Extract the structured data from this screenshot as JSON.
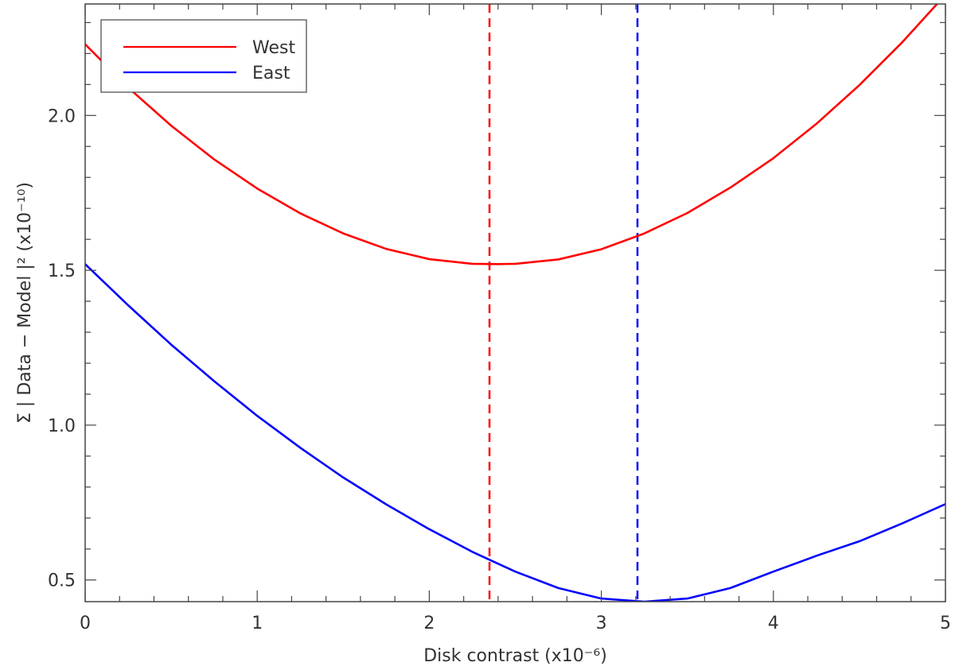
{
  "chart_data": {
    "type": "line",
    "xlabel": "Disk contrast (x10⁻⁶)",
    "ylabel": "Σ | Data − Model |² (x10⁻¹⁰)",
    "xlim": [
      0,
      5
    ],
    "ylim": [
      0.43,
      2.36
    ],
    "x_ticks": [
      {
        "value": 0,
        "label": "0"
      },
      {
        "value": 1,
        "label": "1"
      },
      {
        "value": 2,
        "label": "2"
      },
      {
        "value": 3,
        "label": "3"
      },
      {
        "value": 4,
        "label": "4"
      },
      {
        "value": 5,
        "label": "5"
      }
    ],
    "y_ticks": [
      {
        "value": 0.5,
        "label": "0.5"
      },
      {
        "value": 1.0,
        "label": "1.0"
      },
      {
        "value": 1.5,
        "label": "1.5"
      },
      {
        "value": 2.0,
        "label": "2.0"
      }
    ],
    "x_minor_step": 0.2,
    "y_minor_step": 0.1,
    "legend": {
      "position": "top-left"
    },
    "grid": false,
    "series": [
      {
        "name": "West",
        "color": "#ff0000",
        "x": [
          0.0,
          0.25,
          0.5,
          0.75,
          1.0,
          1.25,
          1.5,
          1.75,
          2.0,
          2.25,
          2.4,
          2.5,
          2.75,
          3.0,
          3.25,
          3.5,
          3.75,
          4.0,
          4.25,
          4.5,
          4.75,
          5.0
        ],
        "y": [
          2.23,
          2.09,
          1.967,
          1.858,
          1.764,
          1.684,
          1.619,
          1.569,
          1.536,
          1.521,
          1.52,
          1.521,
          1.535,
          1.568,
          1.619,
          1.685,
          1.767,
          1.862,
          1.973,
          2.098,
          2.237,
          2.39
        ]
      },
      {
        "name": "East",
        "color": "#0000ff",
        "x": [
          0.0,
          0.25,
          0.5,
          0.75,
          1.0,
          1.25,
          1.5,
          1.75,
          2.0,
          2.25,
          2.5,
          2.75,
          3.0,
          3.25,
          3.5,
          3.75,
          4.0,
          4.25,
          4.5,
          4.75,
          5.0
        ],
        "y": [
          1.52,
          1.387,
          1.26,
          1.142,
          1.03,
          0.927,
          0.831,
          0.744,
          0.664,
          0.591,
          0.527,
          0.474,
          0.44,
          0.43,
          0.44,
          0.474,
          0.527,
          0.578,
          0.625,
          0.683,
          0.745
        ]
      }
    ],
    "vertical_lines": [
      {
        "x": 2.35,
        "color": "#ff0000",
        "style": "dashed",
        "series": "West"
      },
      {
        "x": 3.21,
        "color": "#0000ff",
        "style": "dashed",
        "series": "East"
      }
    ]
  }
}
